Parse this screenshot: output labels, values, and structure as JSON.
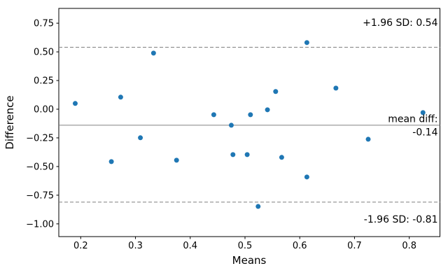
{
  "chart_data": {
    "type": "scatter",
    "title": "",
    "xlabel": "Means",
    "ylabel": "Difference",
    "x_ticks": [
      0.2,
      0.3,
      0.4,
      0.5,
      0.6,
      0.7,
      0.8
    ],
    "y_ticks": [
      0.75,
      0.5,
      0.25,
      0.0,
      -0.25,
      -0.5,
      -0.75,
      -1.0
    ],
    "xlim": [
      0.16,
      0.856
    ],
    "ylim": [
      -1.111,
      0.879
    ],
    "grid": false,
    "legend": "none",
    "marker_color": "#1f77b4",
    "ref_line_color": "#808080",
    "spine_color": "#000000",
    "points": [
      [
        0.19,
        0.05
      ],
      [
        0.256,
        -0.457
      ],
      [
        0.273,
        0.105
      ],
      [
        0.309,
        -0.249
      ],
      [
        0.333,
        0.489
      ],
      [
        0.375,
        -0.445
      ],
      [
        0.443,
        -0.048
      ],
      [
        0.475,
        -0.14
      ],
      [
        0.478,
        -0.396
      ],
      [
        0.504,
        -0.396
      ],
      [
        0.51,
        -0.048
      ],
      [
        0.524,
        -0.848
      ],
      [
        0.541,
        -0.005
      ],
      [
        0.556,
        0.154
      ],
      [
        0.567,
        -0.42
      ],
      [
        0.613,
        0.581
      ],
      [
        0.613,
        -0.591
      ],
      [
        0.666,
        0.184
      ],
      [
        0.725,
        -0.262
      ],
      [
        0.825,
        -0.03
      ]
    ],
    "lines": {
      "mean_diff": -0.14,
      "upper_loa": 0.54,
      "lower_loa": -0.81
    },
    "annotations": {
      "upper": "+1.96 SD: 0.54",
      "mean_label": "mean diff:",
      "mean_value": "-0.14",
      "lower": "-1.96 SD: -0.81"
    }
  }
}
